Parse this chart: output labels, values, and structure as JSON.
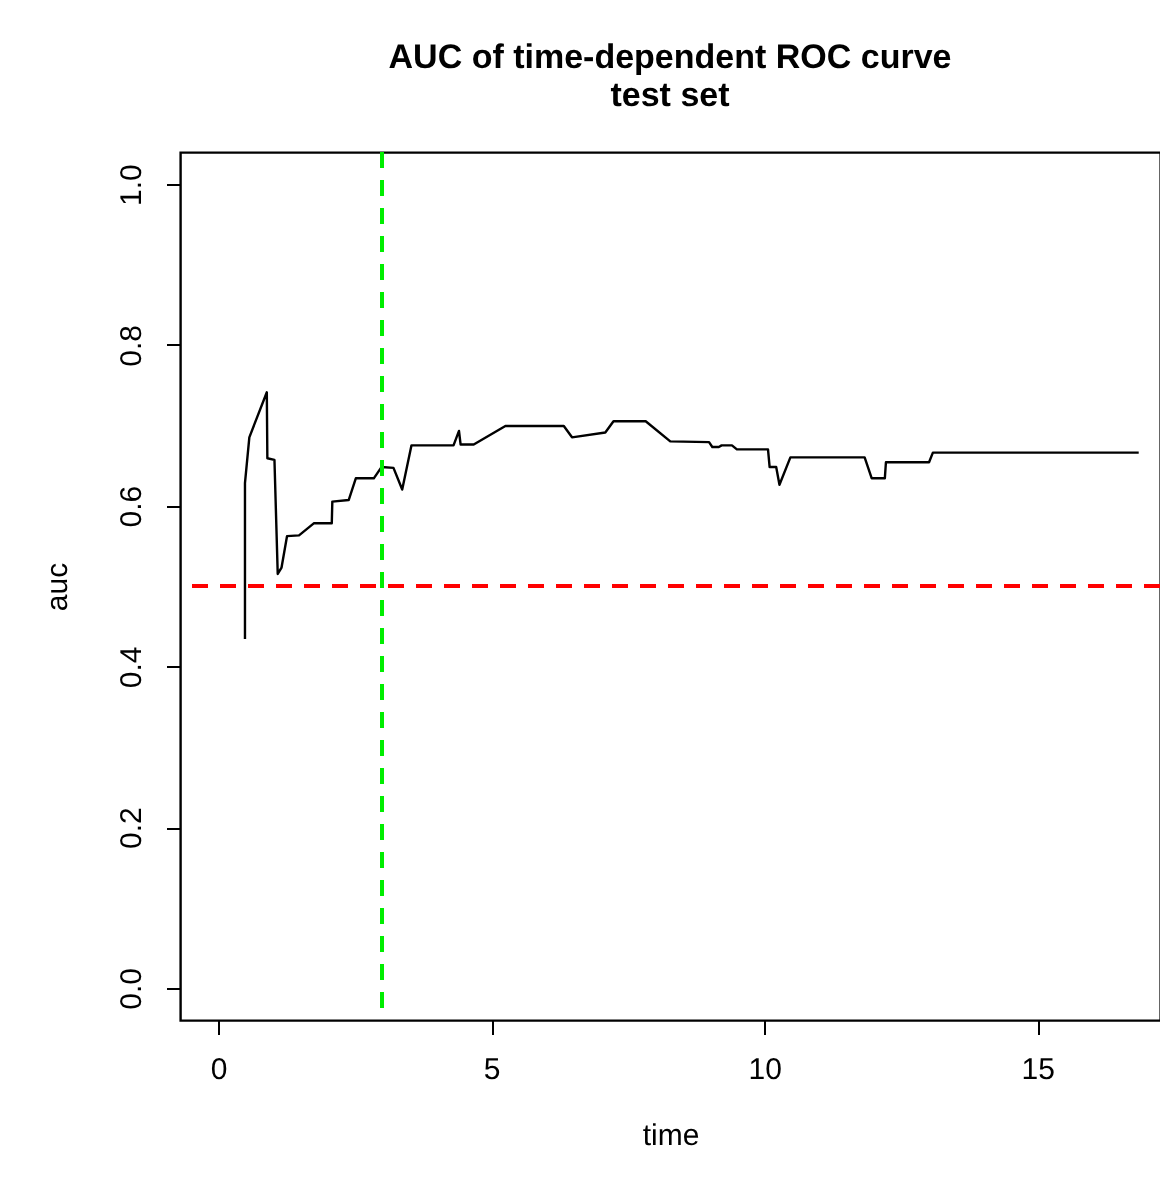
{
  "chart_data": {
    "type": "line",
    "title": "AUC of time-dependent ROC curve",
    "subtitle": "test set",
    "xlabel": "time",
    "ylabel": "auc",
    "x": [
      0.49,
      0.49,
      0.57,
      0.89,
      0.9,
      1.03,
      1.09,
      1.16,
      1.26,
      1.48,
      1.75,
      2.08,
      2.09,
      2.39,
      2.52,
      2.85,
      2.99,
      3.21,
      3.37,
      3.54,
      4.31,
      4.41,
      4.44,
      4.68,
      5.26,
      6.33,
      6.48,
      7.09,
      7.24,
      7.83,
      8.28,
      8.99,
      9.05,
      9.17,
      9.22,
      9.41,
      9.5,
      10.07,
      10.1,
      10.22,
      10.28,
      10.48,
      11.84,
      11.97,
      12.21,
      12.23,
      13.02,
      13.09,
      16.86
    ],
    "series": [
      {
        "color": "#000000",
        "line_style": "solid",
        "values": [
          0.434,
          0.628,
          0.685,
          0.741,
          0.659,
          0.657,
          0.515,
          0.523,
          0.562,
          0.563,
          0.578,
          0.578,
          0.605,
          0.607,
          0.634,
          0.634,
          0.648,
          0.647,
          0.62,
          0.675,
          0.675,
          0.693,
          0.676,
          0.676,
          0.699,
          0.699,
          0.685,
          0.691,
          0.705,
          0.705,
          0.68,
          0.679,
          0.673,
          0.673,
          0.675,
          0.675,
          0.67,
          0.67,
          0.648,
          0.648,
          0.626,
          0.66,
          0.66,
          0.634,
          0.634,
          0.654,
          0.654,
          0.666,
          0.666
        ]
      }
    ],
    "xlim": [
      -0.7,
      17.25
    ],
    "ylim": [
      -0.04,
      1.04
    ],
    "xticks": [
      0,
      5,
      10,
      15
    ],
    "yticks": [
      {
        "value": 0,
        "label": "0.0"
      },
      {
        "value": 0.2,
        "label": "0.2"
      },
      {
        "value": 0.4,
        "label": "0.4"
      },
      {
        "value": 0.6,
        "label": "0.6"
      },
      {
        "value": 0.8,
        "label": "0.8"
      },
      {
        "value": 1,
        "label": "1.0"
      }
    ],
    "ref_lines": [
      {
        "axis": "y",
        "value": 0.5,
        "color": "#ff0000",
        "line_style": "dashed"
      },
      {
        "axis": "x",
        "value": 3,
        "color": "#00ee00",
        "line_style": "dashed"
      }
    ],
    "grid": false,
    "marker": "none"
  }
}
